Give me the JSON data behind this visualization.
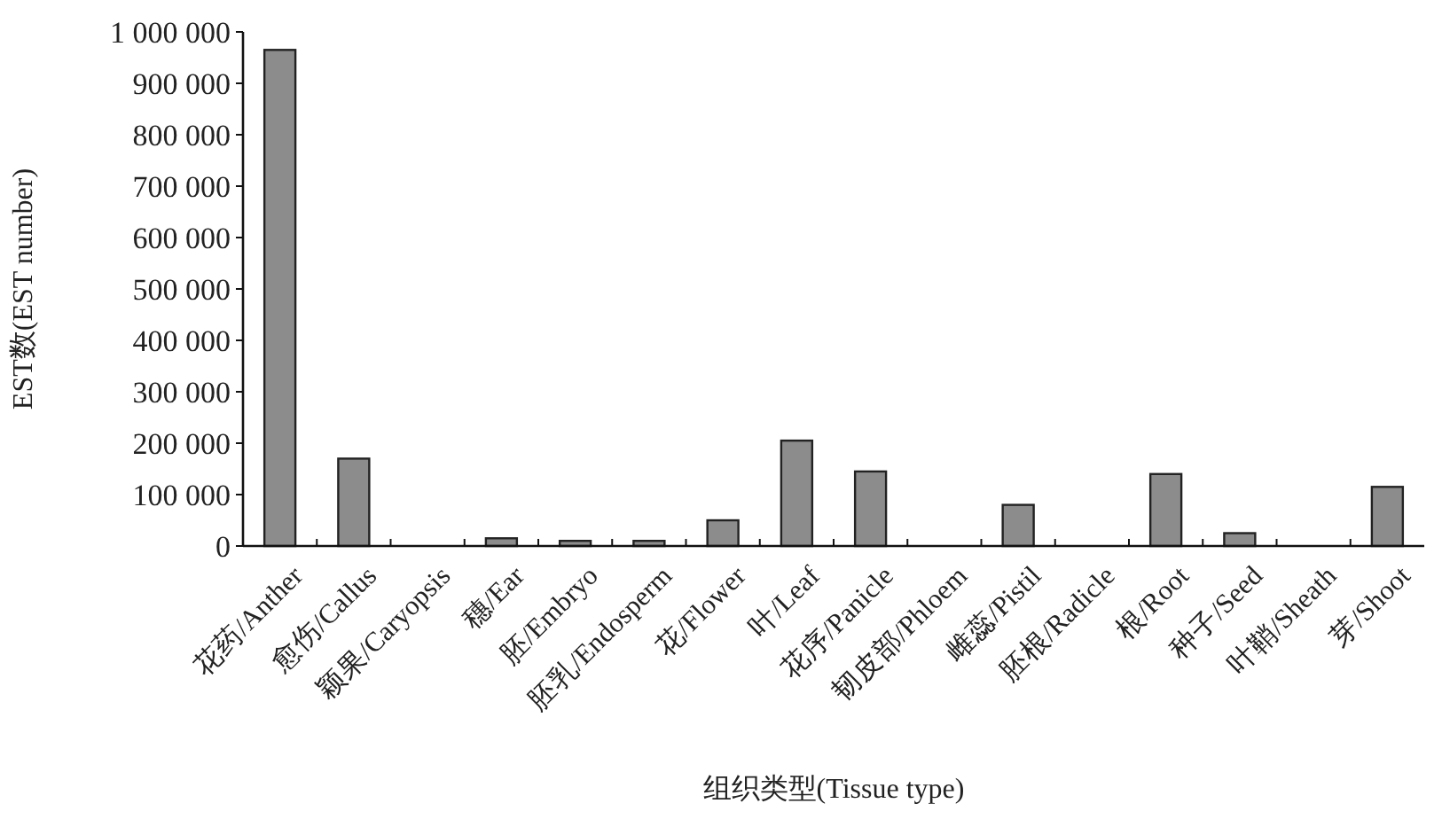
{
  "chart_data": {
    "type": "bar",
    "xlabel": "组织类型(Tissue type)",
    "ylabel": "EST数(EST number)",
    "categories": [
      "花药/Anther",
      "愈伤/Callus",
      "颖果/Caryopsis",
      "穗/Ear",
      "胚/Embryo",
      "胚乳/Endosperm",
      "花/Flower",
      "叶/Leaf",
      "花序/Panicle",
      "韧皮部/Phloem",
      "雌蕊/Pistil",
      "胚根/Radicle",
      "根/Root",
      "种子/Seed",
      "叶鞘/Sheath",
      "芽/Shoot"
    ],
    "values": [
      965000,
      170000,
      0,
      15000,
      10000,
      10000,
      50000,
      205000,
      145000,
      0,
      80000,
      0,
      140000,
      25000,
      0,
      115000
    ],
    "color": "#8c8c8c",
    "ylim": [
      0,
      1000000
    ],
    "yticks": [
      0,
      {
        "value": 100000,
        "label": "100 000"
      },
      {
        "value": 200000,
        "label": "200 000"
      },
      {
        "value": 300000,
        "label": "300 000"
      },
      {
        "value": 400000,
        "label": "400 000"
      },
      {
        "value": 500000,
        "label": "500 000"
      },
      {
        "value": 600000,
        "label": "600 000"
      },
      {
        "value": 700000,
        "label": "700 000"
      },
      {
        "value": 800000,
        "label": "800 000"
      },
      {
        "value": 900000,
        "label": "900 000"
      },
      {
        "value": 1000000,
        "label": "1 000 000"
      }
    ],
    "grid": false
  }
}
